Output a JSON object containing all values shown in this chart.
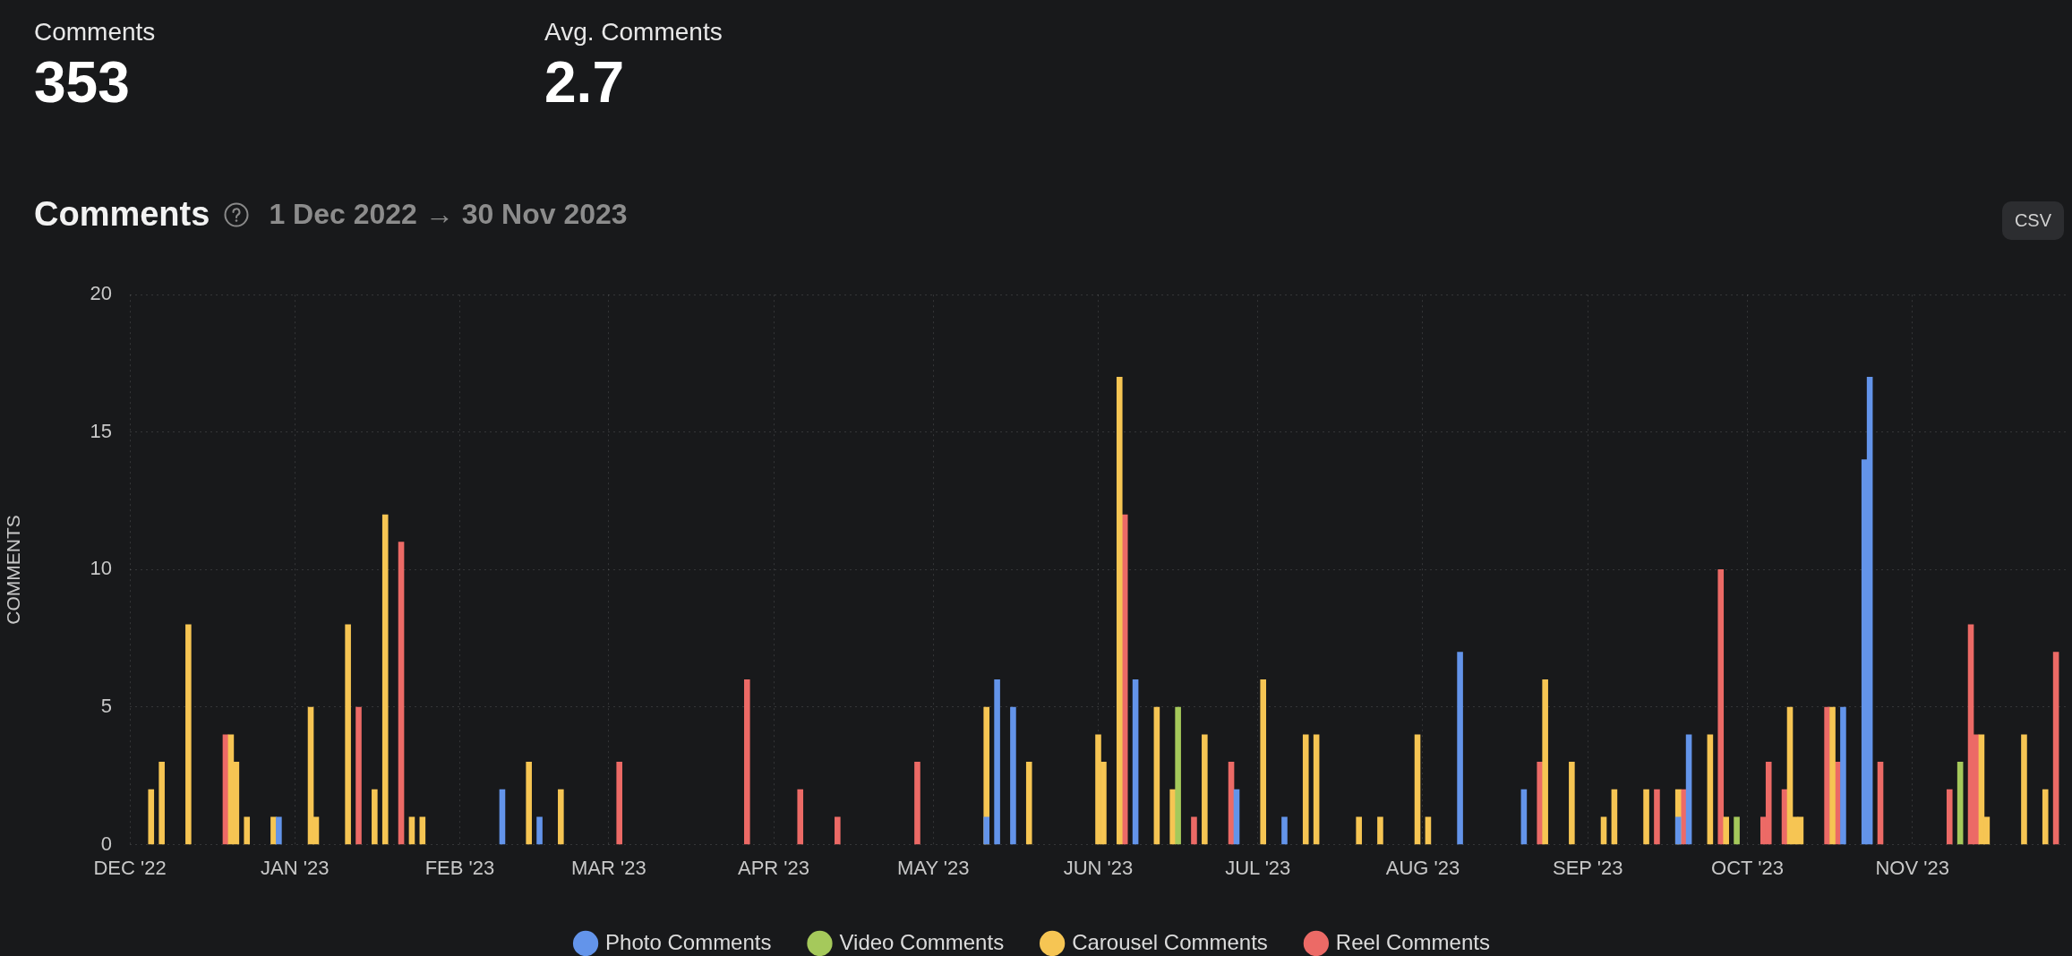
{
  "chart_data": [
    {
      "type": "other",
      "annotations": [
        "Comments",
        "353",
        "Avg. Comments",
        "2.7"
      ]
    },
    {
      "type": "bar",
      "title": "Comments",
      "subtitle": "1 Dec 2022 → 30 Nov 2023",
      "ylabel": "COMMENTS",
      "annotations": [
        "CSV"
      ],
      "grid": true,
      "legend": "bottom",
      "xlim": [
        "2022-12-01",
        "2023-11-30"
      ],
      "xticks": [
        {
          "value": "2022-12-01",
          "label": "DEC '22"
        },
        {
          "value": "2023-01-01",
          "label": "JAN '23"
        },
        {
          "value": "2023-02-01",
          "label": "FEB '23"
        },
        {
          "value": "2023-03-01",
          "label": "MAR '23"
        },
        {
          "value": "2023-04-01",
          "label": "APR '23"
        },
        {
          "value": "2023-05-01",
          "label": "MAY '23"
        },
        {
          "value": "2023-06-01",
          "label": "JUN '23"
        },
        {
          "value": "2023-07-01",
          "label": "JUL '23"
        },
        {
          "value": "2023-08-01",
          "label": "AUG '23"
        },
        {
          "value": "2023-09-01",
          "label": "SEP '23"
        },
        {
          "value": "2023-10-01",
          "label": "OCT '23"
        },
        {
          "value": "2023-11-01",
          "label": "NOV '23"
        }
      ],
      "ylim": [
        0,
        20
      ],
      "yticks": [
        0,
        5,
        10,
        15,
        20
      ],
      "series": [
        {
          "name": "Photo Comments",
          "color": "#6394ea",
          "x": [
            "2022-12-29",
            "2023-02-09",
            "2023-02-16",
            "2023-05-11",
            "2023-05-13",
            "2023-05-16",
            "2023-06-08",
            "2023-06-27",
            "2023-07-06",
            "2023-08-08",
            "2023-08-20",
            "2023-09-18",
            "2023-09-20",
            "2023-10-19",
            "2023-10-23",
            "2023-10-24"
          ],
          "values": [
            1,
            2,
            1,
            1,
            6,
            5,
            6,
            2,
            1,
            7,
            2,
            1,
            4,
            5,
            14,
            17
          ]
        },
        {
          "name": "Video Comments",
          "color": "#a5c95b",
          "x": [
            "2023-06-16",
            "2023-09-29",
            "2023-11-10"
          ],
          "values": [
            5,
            1,
            3
          ]
        },
        {
          "name": "Carousel Comments",
          "color": "#f6c553",
          "x": [
            "2022-12-05",
            "2022-12-07",
            "2022-12-12",
            "2022-12-20",
            "2022-12-21",
            "2022-12-23",
            "2022-12-28",
            "2023-01-04",
            "2023-01-05",
            "2023-01-11",
            "2023-01-16",
            "2023-01-18",
            "2023-01-23",
            "2023-01-25",
            "2023-02-14",
            "2023-02-20",
            "2023-05-11",
            "2023-05-19",
            "2023-06-01",
            "2023-06-02",
            "2023-06-05",
            "2023-06-12",
            "2023-06-15",
            "2023-06-21",
            "2023-07-02",
            "2023-07-10",
            "2023-07-12",
            "2023-07-20",
            "2023-07-24",
            "2023-07-31",
            "2023-08-02",
            "2023-08-24",
            "2023-08-29",
            "2023-09-04",
            "2023-09-06",
            "2023-09-12",
            "2023-09-18",
            "2023-09-24",
            "2023-09-27",
            "2023-10-09",
            "2023-10-10",
            "2023-10-11",
            "2023-10-17",
            "2023-11-14",
            "2023-11-15",
            "2023-11-22",
            "2023-11-26"
          ],
          "values": [
            2,
            3,
            8,
            4,
            3,
            1,
            1,
            5,
            1,
            8,
            2,
            12,
            1,
            1,
            3,
            2,
            5,
            3,
            4,
            3,
            17,
            5,
            2,
            4,
            6,
            4,
            4,
            1,
            1,
            4,
            1,
            6,
            3,
            1,
            2,
            2,
            2,
            4,
            1,
            5,
            1,
            1,
            5,
            4,
            1,
            4,
            2
          ]
        },
        {
          "name": "Reel Comments",
          "color": "#ec6a66",
          "x": [
            "2022-12-19",
            "2023-01-13",
            "2023-01-21",
            "2023-03-03",
            "2023-03-27",
            "2023-04-06",
            "2023-04-13",
            "2023-04-28",
            "2023-06-06",
            "2023-06-19",
            "2023-06-26",
            "2023-08-23",
            "2023-09-14",
            "2023-09-19",
            "2023-09-26",
            "2023-10-04",
            "2023-10-05",
            "2023-10-08",
            "2023-10-16",
            "2023-10-18",
            "2023-10-26",
            "2023-11-08",
            "2023-11-12",
            "2023-11-13",
            "2023-11-28"
          ],
          "values": [
            4,
            5,
            11,
            3,
            6,
            2,
            1,
            3,
            12,
            1,
            3,
            3,
            2,
            2,
            10,
            1,
            3,
            2,
            5,
            3,
            3,
            2,
            8,
            4,
            7
          ]
        }
      ]
    }
  ]
}
